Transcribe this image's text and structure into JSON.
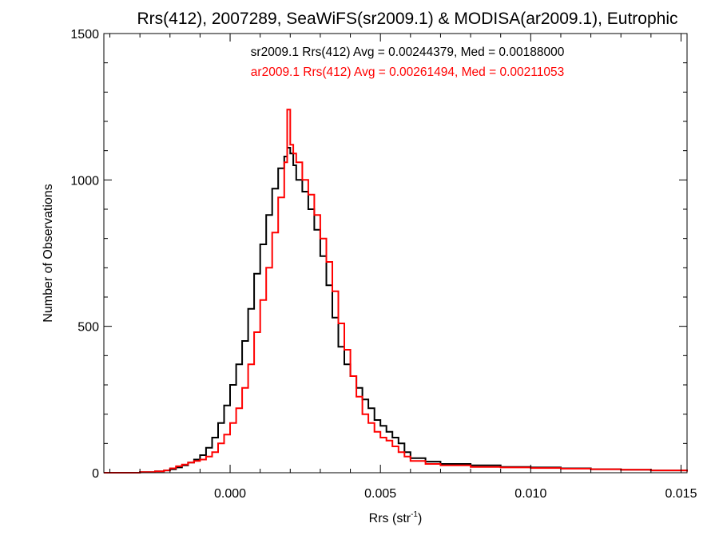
{
  "chart_data": {
    "type": "line",
    "title": "Rrs(412), 2007289, SeaWiFS(sr2009.1) & MODISA(ar2009.1), Eutrophic",
    "xlabel": "Rrs (str",
    "xlabel_sup": "-1",
    "xlabel_close": ")",
    "ylabel": "Number of Observations",
    "xlim": [
      -0.0042,
      0.0152
    ],
    "ylim": [
      0,
      1500
    ],
    "x_ticks": [
      0.0,
      0.005,
      0.01,
      0.015
    ],
    "x_tick_labels": [
      "0.000",
      "0.005",
      "0.010",
      "0.015"
    ],
    "y_ticks": [
      0,
      500,
      1000,
      1500
    ],
    "y_tick_labels": [
      "0",
      "500",
      "1000",
      "1500"
    ],
    "legend_position": "top-center",
    "annotations": [
      {
        "text": "sr2009.1 Rrs(412) Avg = 0.00244379, Med = 0.00188000",
        "color": "#000000"
      },
      {
        "text": "ar2009.1 Rrs(412) Avg = 0.00261494, Med = 0.00211053",
        "color": "#ff0000"
      }
    ],
    "series": [
      {
        "color": "#000000",
        "x": [
          -0.0042,
          -0.0035,
          -0.003,
          -0.0025,
          -0.0022,
          -0.002,
          -0.0018,
          -0.0016,
          -0.0014,
          -0.0012,
          -0.001,
          -0.0008,
          -0.0006,
          -0.0004,
          -0.0002,
          0.0,
          0.0002,
          0.0004,
          0.0006,
          0.0008,
          0.001,
          0.0012,
          0.0014,
          0.0016,
          0.0018,
          0.0019,
          0.002,
          0.0021,
          0.0022,
          0.0024,
          0.0026,
          0.0028,
          0.003,
          0.0032,
          0.0034,
          0.0036,
          0.0038,
          0.004,
          0.0042,
          0.0044,
          0.0046,
          0.0048,
          0.005,
          0.0052,
          0.0054,
          0.0056,
          0.0058,
          0.006,
          0.0065,
          0.007,
          0.008,
          0.009,
          0.01,
          0.011,
          0.012,
          0.013,
          0.014,
          0.0152
        ],
        "y": [
          0,
          0,
          2,
          5,
          8,
          12,
          18,
          25,
          35,
          45,
          60,
          85,
          120,
          170,
          230,
          300,
          370,
          450,
          560,
          680,
          780,
          880,
          970,
          1040,
          1080,
          1110,
          1090,
          1050,
          1000,
          960,
          900,
          830,
          740,
          640,
          530,
          430,
          370,
          330,
          290,
          250,
          220,
          180,
          160,
          140,
          120,
          100,
          70,
          50,
          38,
          30,
          25,
          20,
          18,
          15,
          12,
          10,
          8,
          5
        ]
      },
      {
        "color": "#ff0000",
        "x": [
          -0.0042,
          -0.0035,
          -0.003,
          -0.0025,
          -0.0022,
          -0.002,
          -0.0018,
          -0.0016,
          -0.0014,
          -0.0012,
          -0.001,
          -0.0008,
          -0.0006,
          -0.0004,
          -0.0002,
          0.0,
          0.0002,
          0.0004,
          0.0006,
          0.0008,
          0.001,
          0.0012,
          0.0014,
          0.0016,
          0.0018,
          0.0019,
          0.002,
          0.0021,
          0.0022,
          0.0024,
          0.0026,
          0.0028,
          0.003,
          0.0032,
          0.0034,
          0.0036,
          0.0038,
          0.004,
          0.0042,
          0.0044,
          0.0046,
          0.0048,
          0.005,
          0.0052,
          0.0054,
          0.0056,
          0.0058,
          0.006,
          0.0065,
          0.007,
          0.008,
          0.009,
          0.01,
          0.011,
          0.012,
          0.013,
          0.014,
          0.0152
        ],
        "y": [
          0,
          0,
          2,
          5,
          8,
          15,
          22,
          28,
          35,
          40,
          45,
          55,
          70,
          100,
          130,
          170,
          220,
          290,
          370,
          480,
          590,
          700,
          820,
          940,
          1060,
          1240,
          1120,
          1090,
          1060,
          1000,
          950,
          880,
          800,
          720,
          620,
          510,
          420,
          330,
          260,
          200,
          170,
          140,
          120,
          110,
          90,
          70,
          55,
          40,
          30,
          25,
          20,
          18,
          16,
          14,
          12,
          10,
          8,
          4
        ]
      }
    ]
  }
}
